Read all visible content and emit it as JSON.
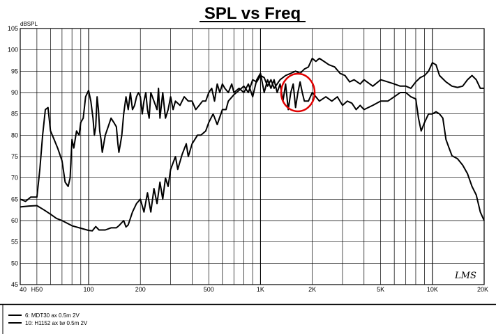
{
  "chart_data": {
    "type": "line",
    "title": "SPL vs Freq",
    "ylabel": "dBSPL",
    "xlabel": "",
    "xscale": "log",
    "xlim": [
      40,
      20000
    ],
    "ylim": [
      45,
      105
    ],
    "grid": true,
    "y_ticks": [
      45,
      50,
      55,
      60,
      65,
      70,
      75,
      80,
      85,
      90,
      95,
      100,
      105
    ],
    "x_tick_labels": [
      {
        "value": 40,
        "label": "40"
      },
      {
        "value": 100,
        "label": "100"
      },
      {
        "value": 200,
        "label": "200"
      },
      {
        "value": 500,
        "label": "500"
      },
      {
        "value": 1000,
        "label": "1K"
      },
      {
        "value": 2000,
        "label": "2K"
      },
      {
        "value": 5000,
        "label": "5K"
      },
      {
        "value": 10000,
        "label": "10K"
      },
      {
        "value": 20000,
        "label": "20K"
      }
    ],
    "x_extra_label": {
      "value": 50,
      "label": "H50"
    },
    "annotation": {
      "type": "circle",
      "center_freq": 1650,
      "center_db": 90,
      "color": "#e00000"
    },
    "signature": "LMS",
    "legend_position": "bottom-left",
    "series": [
      {
        "name": "6: MDT30 ax 0.5m 2V",
        "color": "#000000",
        "points": [
          [
            40,
            63.2
          ],
          [
            45,
            63.4
          ],
          [
            50,
            63.5
          ],
          [
            55,
            62.5
          ],
          [
            60,
            61.5
          ],
          [
            65,
            60.5
          ],
          [
            70,
            60
          ],
          [
            80,
            58.8
          ],
          [
            90,
            58.2
          ],
          [
            100,
            57.7
          ],
          [
            105,
            57.6
          ],
          [
            110,
            58.6
          ],
          [
            115,
            57.8
          ],
          [
            125,
            57.8
          ],
          [
            135,
            58.3
          ],
          [
            145,
            58.3
          ],
          [
            150,
            58.8
          ],
          [
            160,
            60
          ],
          [
            165,
            58.5
          ],
          [
            170,
            59
          ],
          [
            180,
            62
          ],
          [
            190,
            64
          ],
          [
            200,
            65
          ],
          [
            210,
            62
          ],
          [
            220,
            66.5
          ],
          [
            230,
            62
          ],
          [
            240,
            67.5
          ],
          [
            250,
            64
          ],
          [
            260,
            69
          ],
          [
            270,
            65
          ],
          [
            280,
            70
          ],
          [
            290,
            68
          ],
          [
            300,
            72
          ],
          [
            320,
            75
          ],
          [
            330,
            72
          ],
          [
            350,
            75.5
          ],
          [
            370,
            78
          ],
          [
            380,
            75
          ],
          [
            400,
            78
          ],
          [
            430,
            80
          ],
          [
            450,
            80
          ],
          [
            480,
            81
          ],
          [
            500,
            83
          ],
          [
            530,
            85
          ],
          [
            560,
            82.5
          ],
          [
            600,
            86
          ],
          [
            630,
            86
          ],
          [
            650,
            88
          ],
          [
            700,
            89.5
          ],
          [
            750,
            90.5
          ],
          [
            800,
            91.5
          ],
          [
            850,
            90
          ],
          [
            900,
            93
          ],
          [
            950,
            92.5
          ],
          [
            1000,
            94
          ],
          [
            1050,
            93.5
          ],
          [
            1100,
            91.5
          ],
          [
            1150,
            93
          ],
          [
            1200,
            91
          ],
          [
            1300,
            93
          ],
          [
            1400,
            94
          ],
          [
            1500,
            94.5
          ],
          [
            1600,
            95
          ],
          [
            1700,
            94.5
          ],
          [
            1800,
            95.5
          ],
          [
            1900,
            96
          ],
          [
            2000,
            98
          ],
          [
            2100,
            97.3
          ],
          [
            2200,
            98
          ],
          [
            2300,
            97.5
          ],
          [
            2500,
            96.5
          ],
          [
            2700,
            96
          ],
          [
            2900,
            94.5
          ],
          [
            3100,
            94
          ],
          [
            3300,
            92.5
          ],
          [
            3500,
            93
          ],
          [
            3800,
            92
          ],
          [
            4000,
            93
          ],
          [
            4500,
            91.5
          ],
          [
            5000,
            93
          ],
          [
            5500,
            92.5
          ],
          [
            6000,
            92
          ],
          [
            6500,
            91.5
          ],
          [
            7000,
            91.5
          ],
          [
            7500,
            91
          ],
          [
            8000,
            92.5
          ],
          [
            8500,
            93.5
          ],
          [
            9000,
            94
          ],
          [
            9500,
            95
          ],
          [
            10000,
            97
          ],
          [
            10500,
            96.5
          ],
          [
            11000,
            94
          ],
          [
            12000,
            92.5
          ],
          [
            13000,
            91.5
          ],
          [
            14000,
            91.2
          ],
          [
            15000,
            91.5
          ],
          [
            16000,
            93
          ],
          [
            17000,
            94
          ],
          [
            18000,
            93
          ],
          [
            19000,
            91
          ],
          [
            20000,
            91
          ]
        ]
      },
      {
        "name": "10: H1152 ax tw 0.5m 2V",
        "color": "#000000",
        "points": [
          [
            40,
            65
          ],
          [
            43,
            64.5
          ],
          [
            46,
            65.5
          ],
          [
            50,
            65.5
          ],
          [
            52,
            72
          ],
          [
            54,
            80
          ],
          [
            56,
            86
          ],
          [
            58,
            86.5
          ],
          [
            60,
            81
          ],
          [
            63,
            79
          ],
          [
            66,
            77
          ],
          [
            70,
            74
          ],
          [
            73,
            69
          ],
          [
            76,
            68
          ],
          [
            78,
            70
          ],
          [
            80,
            79
          ],
          [
            82,
            77
          ],
          [
            85,
            81
          ],
          [
            88,
            80
          ],
          [
            90,
            83
          ],
          [
            93,
            84
          ],
          [
            96,
            89
          ],
          [
            100,
            90.5
          ],
          [
            103,
            88
          ],
          [
            106,
            84
          ],
          [
            108,
            80
          ],
          [
            110,
            82
          ],
          [
            112,
            89
          ],
          [
            114,
            86
          ],
          [
            116,
            81
          ],
          [
            118,
            79
          ],
          [
            120,
            76
          ],
          [
            125,
            80
          ],
          [
            130,
            82
          ],
          [
            135,
            84
          ],
          [
            140,
            83
          ],
          [
            145,
            82
          ],
          [
            148,
            78
          ],
          [
            150,
            76
          ],
          [
            153,
            78
          ],
          [
            156,
            80
          ],
          [
            160,
            85
          ],
          [
            165,
            89
          ],
          [
            170,
            86
          ],
          [
            175,
            90
          ],
          [
            180,
            86
          ],
          [
            185,
            87
          ],
          [
            190,
            89
          ],
          [
            195,
            90
          ],
          [
            200,
            89
          ],
          [
            205,
            85
          ],
          [
            210,
            88
          ],
          [
            215,
            90
          ],
          [
            220,
            86
          ],
          [
            225,
            84
          ],
          [
            230,
            90
          ],
          [
            240,
            88
          ],
          [
            250,
            86
          ],
          [
            255,
            91
          ],
          [
            260,
            84
          ],
          [
            270,
            90
          ],
          [
            280,
            84
          ],
          [
            290,
            86
          ],
          [
            300,
            89
          ],
          [
            310,
            86
          ],
          [
            320,
            88
          ],
          [
            340,
            87
          ],
          [
            360,
            89
          ],
          [
            380,
            88
          ],
          [
            400,
            88
          ],
          [
            420,
            86
          ],
          [
            440,
            87
          ],
          [
            460,
            88
          ],
          [
            480,
            88
          ],
          [
            500,
            90
          ],
          [
            520,
            91
          ],
          [
            540,
            88
          ],
          [
            560,
            92
          ],
          [
            580,
            90
          ],
          [
            600,
            92
          ],
          [
            620,
            91
          ],
          [
            650,
            90
          ],
          [
            680,
            92
          ],
          [
            700,
            90
          ],
          [
            750,
            91
          ],
          [
            800,
            90
          ],
          [
            850,
            92
          ],
          [
            900,
            89
          ],
          [
            950,
            93
          ],
          [
            1000,
            94.5
          ],
          [
            1050,
            90
          ],
          [
            1100,
            93
          ],
          [
            1150,
            91
          ],
          [
            1200,
            93
          ],
          [
            1250,
            90
          ],
          [
            1300,
            92
          ],
          [
            1350,
            88
          ],
          [
            1400,
            92
          ],
          [
            1450,
            86
          ],
          [
            1500,
            90
          ],
          [
            1550,
            92
          ],
          [
            1600,
            86.5
          ],
          [
            1650,
            90
          ],
          [
            1700,
            92.5
          ],
          [
            1750,
            90
          ],
          [
            1800,
            88
          ],
          [
            1850,
            88
          ],
          [
            1900,
            88
          ],
          [
            2000,
            90
          ],
          [
            2100,
            89
          ],
          [
            2200,
            88
          ],
          [
            2400,
            89
          ],
          [
            2600,
            88
          ],
          [
            2800,
            89
          ],
          [
            3000,
            87
          ],
          [
            3200,
            88
          ],
          [
            3400,
            87.5
          ],
          [
            3600,
            86
          ],
          [
            3800,
            87
          ],
          [
            4000,
            86
          ],
          [
            4500,
            87
          ],
          [
            5000,
            88
          ],
          [
            5500,
            88
          ],
          [
            6000,
            89
          ],
          [
            6500,
            90
          ],
          [
            7000,
            90
          ],
          [
            7500,
            89
          ],
          [
            8000,
            88.5
          ],
          [
            8300,
            84
          ],
          [
            8600,
            81
          ],
          [
            9000,
            83
          ],
          [
            9500,
            85
          ],
          [
            10000,
            85
          ],
          [
            10500,
            85.5
          ],
          [
            11000,
            85
          ],
          [
            11500,
            84
          ],
          [
            12000,
            79
          ],
          [
            12500,
            77
          ],
          [
            13000,
            75.2
          ],
          [
            14000,
            74.5
          ],
          [
            15000,
            73
          ],
          [
            16000,
            71
          ],
          [
            17000,
            68
          ],
          [
            18000,
            66
          ],
          [
            19000,
            62
          ],
          [
            20000,
            60
          ]
        ]
      }
    ]
  }
}
